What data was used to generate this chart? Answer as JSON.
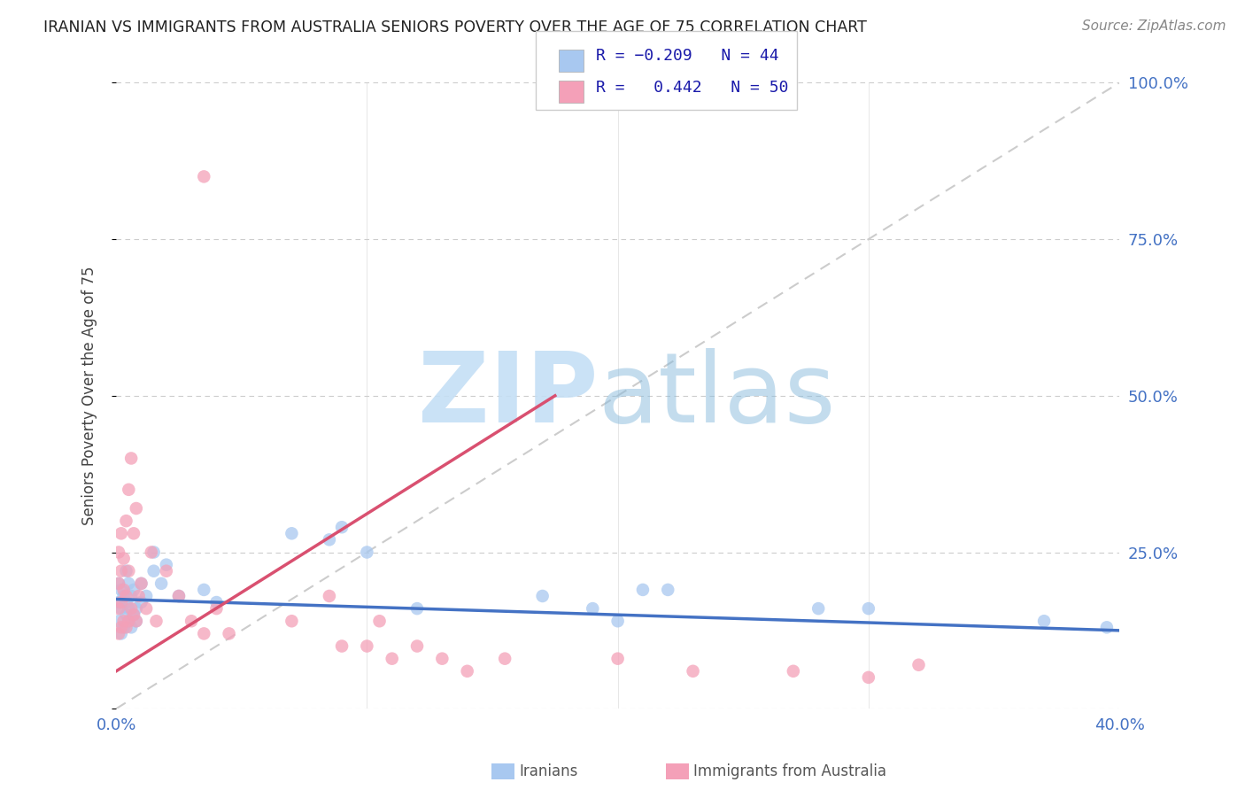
{
  "title": "IRANIAN VS IMMIGRANTS FROM AUSTRALIA SENIORS POVERTY OVER THE AGE OF 75 CORRELATION CHART",
  "source": "Source: ZipAtlas.com",
  "ylabel": "Seniors Poverty Over the Age of 75",
  "xlim": [
    0.0,
    0.4
  ],
  "ylim": [
    0.0,
    1.0
  ],
  "iranians_color": "#A8C8F0",
  "australia_color": "#F4A0B8",
  "trend_iranians_color": "#4472C4",
  "trend_australia_color": "#D95070",
  "diagonal_color": "#CCCCCC",
  "watermark_zip_color": "#C8DFF5",
  "watermark_atlas_color": "#9EC8E8",
  "background_color": "#FFFFFF",
  "grid_color": "#CCCCCC",
  "axis_label_color": "#4472C4",
  "title_color": "#222222",
  "source_color": "#888888",
  "iranians_x": [
    0.001,
    0.001,
    0.001,
    0.002,
    0.002,
    0.002,
    0.003,
    0.003,
    0.004,
    0.004,
    0.004,
    0.005,
    0.005,
    0.005,
    0.006,
    0.006,
    0.007,
    0.007,
    0.008,
    0.008,
    0.01,
    0.01,
    0.012,
    0.015,
    0.015,
    0.018,
    0.02,
    0.025,
    0.035,
    0.04,
    0.07,
    0.085,
    0.09,
    0.1,
    0.12,
    0.17,
    0.19,
    0.2,
    0.21,
    0.22,
    0.28,
    0.3,
    0.37,
    0.395
  ],
  "iranians_y": [
    0.14,
    0.17,
    0.2,
    0.12,
    0.16,
    0.19,
    0.13,
    0.18,
    0.15,
    0.17,
    0.22,
    0.14,
    0.16,
    0.2,
    0.13,
    0.18,
    0.15,
    0.19,
    0.14,
    0.16,
    0.17,
    0.2,
    0.18,
    0.22,
    0.25,
    0.2,
    0.23,
    0.18,
    0.19,
    0.17,
    0.28,
    0.27,
    0.29,
    0.25,
    0.16,
    0.18,
    0.16,
    0.14,
    0.19,
    0.19,
    0.16,
    0.16,
    0.14,
    0.13
  ],
  "australia_x": [
    0.001,
    0.001,
    0.001,
    0.001,
    0.002,
    0.002,
    0.002,
    0.002,
    0.003,
    0.003,
    0.003,
    0.004,
    0.004,
    0.004,
    0.005,
    0.005,
    0.005,
    0.006,
    0.006,
    0.007,
    0.007,
    0.008,
    0.008,
    0.009,
    0.01,
    0.012,
    0.014,
    0.016,
    0.02,
    0.025,
    0.03,
    0.035,
    0.04,
    0.045,
    0.07,
    0.085,
    0.09,
    0.1,
    0.105,
    0.11,
    0.12,
    0.13,
    0.14,
    0.155,
    0.2,
    0.23,
    0.27,
    0.3,
    0.32,
    0.035
  ],
  "australia_y": [
    0.12,
    0.16,
    0.2,
    0.25,
    0.13,
    0.17,
    0.22,
    0.28,
    0.14,
    0.19,
    0.24,
    0.13,
    0.18,
    0.3,
    0.14,
    0.22,
    0.35,
    0.16,
    0.4,
    0.15,
    0.28,
    0.14,
    0.32,
    0.18,
    0.2,
    0.16,
    0.25,
    0.14,
    0.22,
    0.18,
    0.14,
    0.12,
    0.16,
    0.12,
    0.14,
    0.18,
    0.1,
    0.1,
    0.14,
    0.08,
    0.1,
    0.08,
    0.06,
    0.08,
    0.08,
    0.06,
    0.06,
    0.05,
    0.07,
    0.85
  ],
  "trend_ir_x0": 0.0,
  "trend_ir_x1": 0.4,
  "trend_ir_y0": 0.175,
  "trend_ir_y1": 0.125,
  "trend_au_x0": 0.0,
  "trend_au_x1": 0.175,
  "trend_au_y0": 0.06,
  "trend_au_y1": 0.5
}
